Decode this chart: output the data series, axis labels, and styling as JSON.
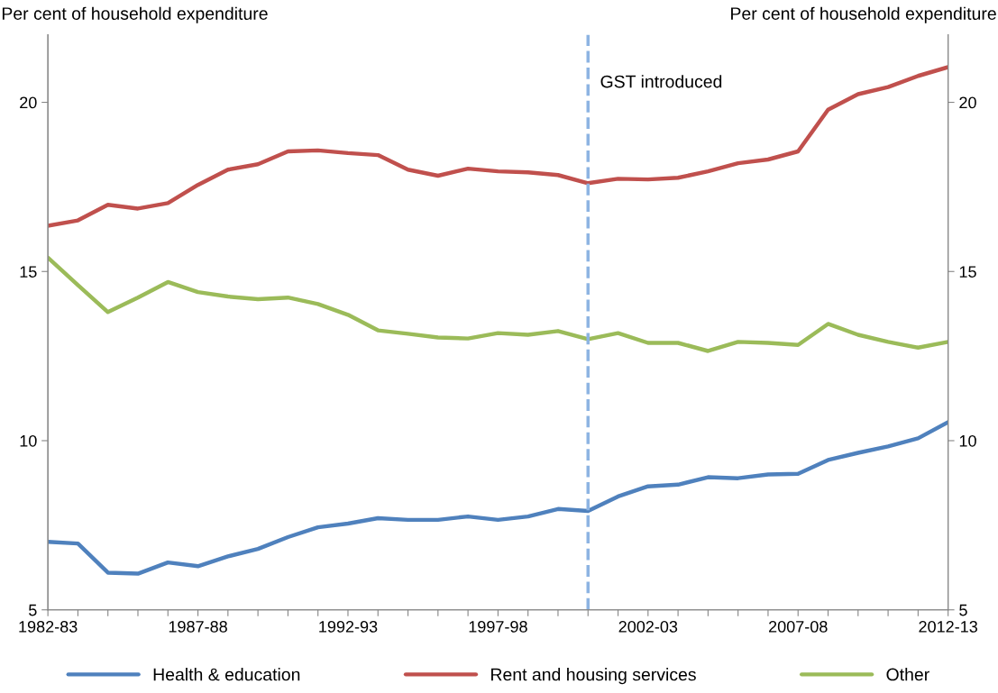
{
  "chart_data": {
    "type": "line",
    "ylabel": "Per cent of household expenditure",
    "y2label": "Per cent of household expenditure",
    "categories": [
      "1982-83",
      null,
      null,
      null,
      null,
      "1987-88",
      null,
      null,
      null,
      null,
      "1992-93",
      null,
      null,
      null,
      null,
      "1997-98",
      null,
      null,
      null,
      null,
      "2002-03",
      null,
      null,
      null,
      null,
      "2007-08",
      null,
      null,
      null,
      null,
      "2012-13"
    ],
    "series": [
      {
        "name": "Health & education",
        "color": "#4f81bd",
        "values": [
          7.01,
          6.96,
          6.1,
          6.07,
          6.4,
          6.29,
          6.58,
          6.8,
          7.15,
          7.44,
          7.55,
          7.71,
          7.66,
          7.66,
          7.76,
          7.66,
          7.76,
          7.98,
          7.92,
          8.35,
          8.65,
          8.7,
          8.92,
          8.89,
          9.0,
          9.02,
          9.43,
          9.64,
          9.83,
          10.07,
          10.55
        ]
      },
      {
        "name": "Rent and housing services",
        "color": "#c0504d",
        "values": [
          16.35,
          16.51,
          16.97,
          16.86,
          17.02,
          17.56,
          18.01,
          18.17,
          18.55,
          18.58,
          18.5,
          18.44,
          18.01,
          17.83,
          18.04,
          17.96,
          17.93,
          17.85,
          17.61,
          17.74,
          17.72,
          17.77,
          17.96,
          18.2,
          18.31,
          18.55,
          19.78,
          20.24,
          20.45,
          20.78,
          21.04
        ]
      },
      {
        "name": "Other",
        "color": "#9bbb59",
        "values": [
          15.41,
          14.6,
          13.8,
          14.23,
          14.69,
          14.39,
          14.26,
          14.18,
          14.23,
          14.04,
          13.72,
          13.26,
          13.16,
          13.05,
          13.02,
          13.18,
          13.13,
          13.24,
          13.0,
          13.18,
          12.89,
          12.89,
          12.65,
          12.92,
          12.89,
          12.83,
          13.45,
          13.13,
          12.92,
          12.75,
          12.92
        ]
      }
    ],
    "ylim": [
      5,
      22
    ],
    "yticks": [
      5,
      10,
      15,
      20
    ],
    "y2lim": [
      5,
      22
    ],
    "y2ticks": [
      5,
      10,
      15,
      20
    ],
    "annotations": [
      "GST introduced"
    ],
    "grid": false,
    "legend": "bottom",
    "marker": "none",
    "line_style": "solid"
  }
}
